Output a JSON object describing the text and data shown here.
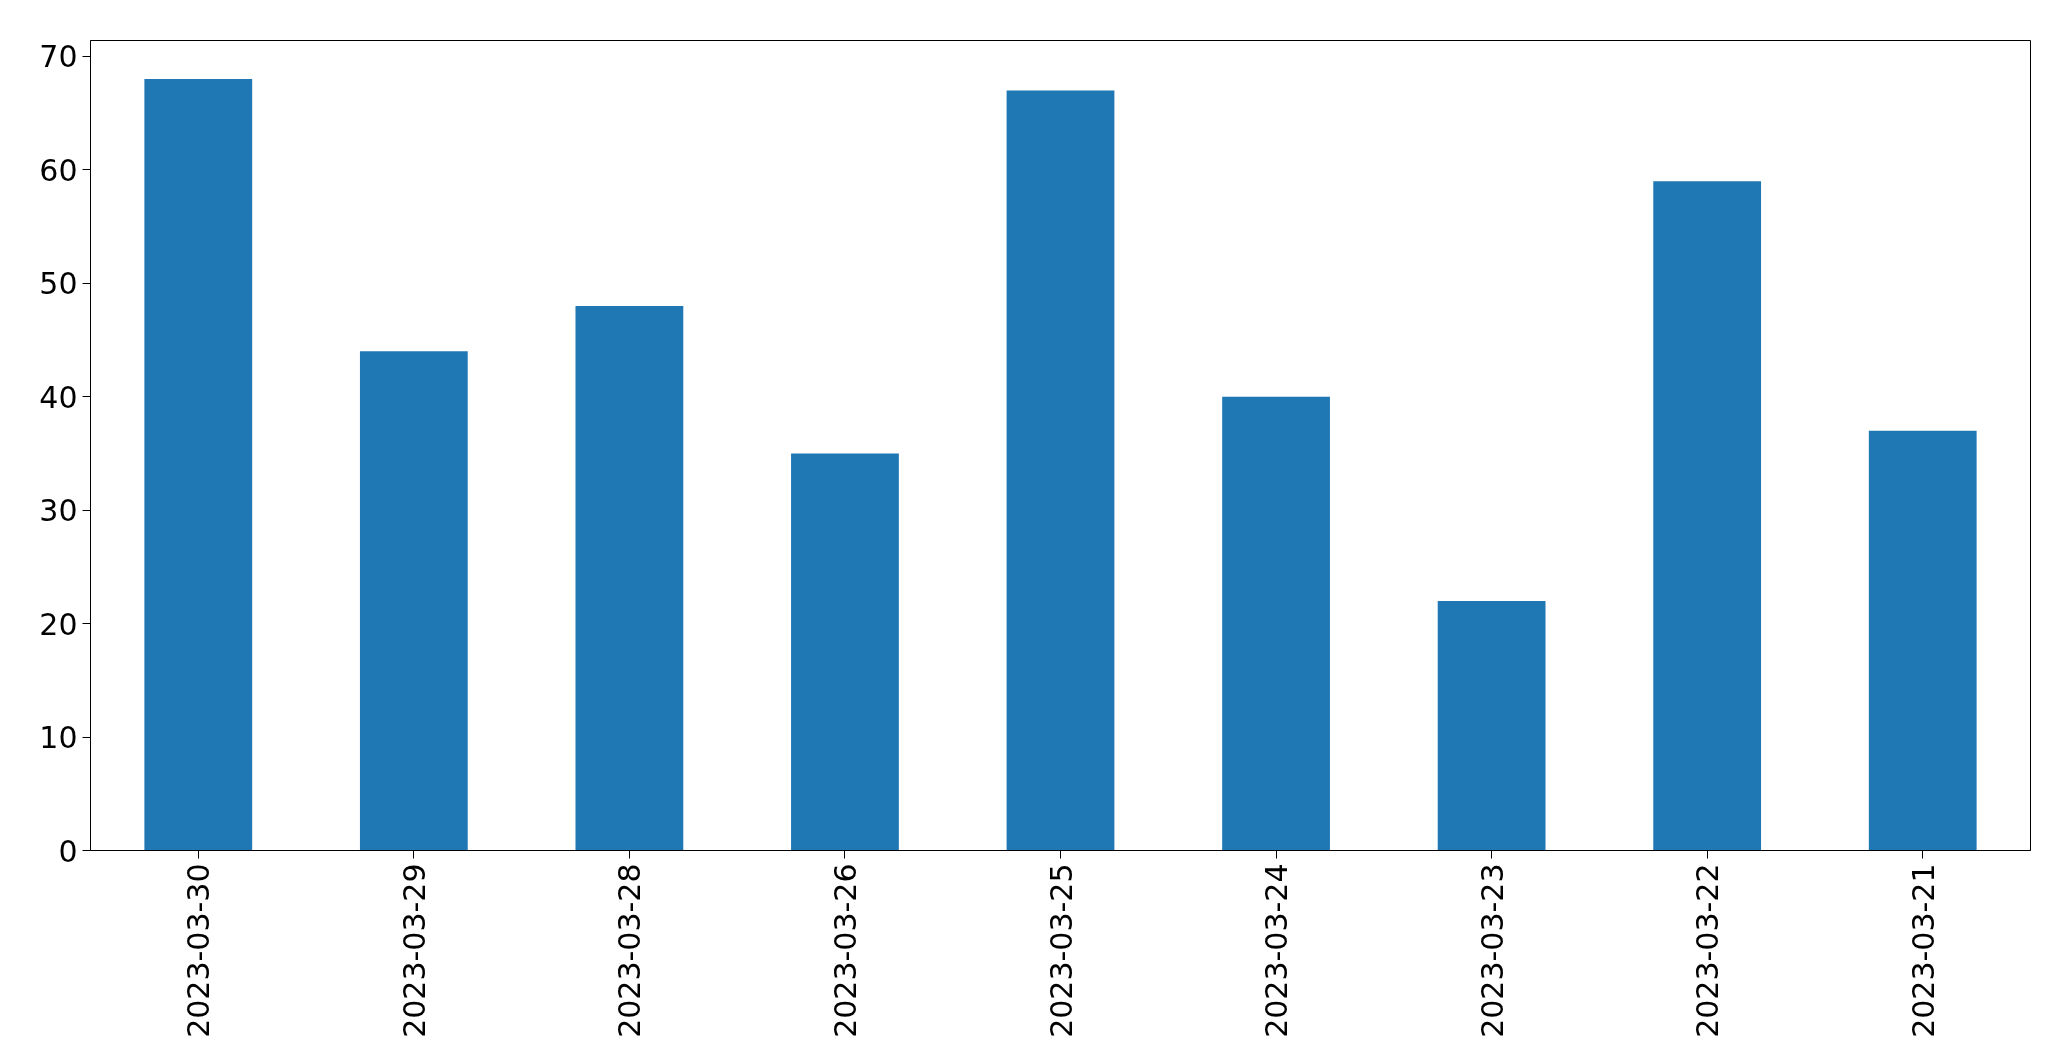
{
  "chart_data": {
    "type": "bar",
    "categories": [
      "2023-03-30",
      "2023-03-29",
      "2023-03-28",
      "2023-03-26",
      "2023-03-25",
      "2023-03-24",
      "2023-03-23",
      "2023-03-22",
      "2023-03-21"
    ],
    "values": [
      68,
      44,
      48,
      35,
      67,
      40,
      22,
      59,
      37
    ],
    "color": "#1f77b4",
    "ylim": [
      0,
      71.4
    ],
    "yticks": [
      0,
      10,
      20,
      30,
      40,
      50,
      60,
      70
    ],
    "grid": false
  }
}
